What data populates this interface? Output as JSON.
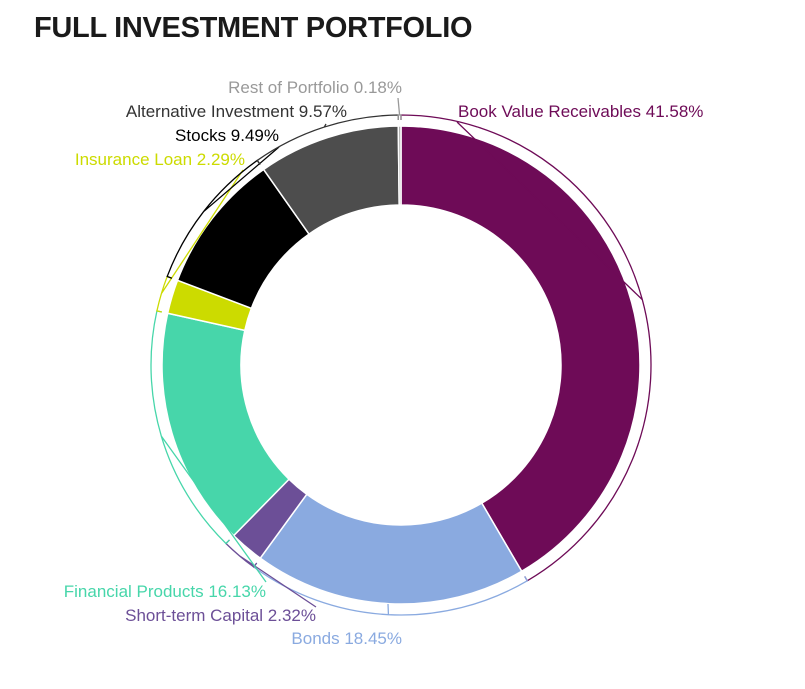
{
  "page": {
    "title": "FULL INVESTMENT PORTFOLIO"
  },
  "chart_data": {
    "type": "pie",
    "variant": "donut",
    "title": "FULL INVESTMENT PORTFOLIO",
    "start": "top",
    "direction": "clockwise",
    "categories": [
      "Book Value Receivables",
      "Bonds",
      "Short-term Capital",
      "Financial Products",
      "Insurance Loan",
      "Stocks",
      "Alternative Investment",
      "Rest of Portfolio"
    ],
    "values": [
      41.58,
      18.45,
      2.32,
      16.13,
      2.29,
      9.49,
      9.57,
      0.18
    ],
    "labels": [
      "Book Value Receivables 41.58%",
      "Bonds 18.45%",
      "Short-term Capital 2.32%",
      "Financial Products 16.13%",
      "Insurance Loan 2.29%",
      "Stocks 9.49%",
      "Alternative Investment 9.57%",
      "Rest of Portfolio 0.18%"
    ],
    "colors": [
      "#6e0b57",
      "#8aaae0",
      "#6c4f97",
      "#47d6aa",
      "#ccdb00",
      "#000000",
      "#4d4d4d",
      "#aaaaaa"
    ],
    "label_colors": [
      "#6e0b57",
      "#8aaae0",
      "#6c4f97",
      "#47d6aa",
      "#ccdb00",
      "#000000",
      "#333333",
      "#999999"
    ],
    "legend": "none"
  }
}
